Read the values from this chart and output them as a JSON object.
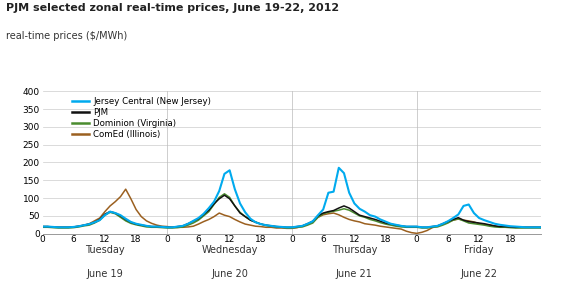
{
  "title": "PJM selected zonal real-time prices, June 19-22, 2012",
  "ylabel": "real-time prices ($/MWh)",
  "ylim": [
    0,
    400
  ],
  "yticks": [
    0,
    50,
    100,
    150,
    200,
    250,
    300,
    350,
    400
  ],
  "background_color": "#ffffff",
  "colors": {
    "jersey": "#00AAEE",
    "pjm": "#111111",
    "dominion": "#4a8c2f",
    "comed": "#9B6020"
  },
  "legend": [
    {
      "label": "Jersey Central (New Jersey)",
      "color": "#00AAEE"
    },
    {
      "label": "PJM",
      "color": "#111111"
    },
    {
      "label": "Dominion (Virginia)",
      "color": "#4a8c2f"
    },
    {
      "label": "ComEd (Illinois)",
      "color": "#9B6020"
    }
  ],
  "hour_tick_positions": [
    0,
    6,
    12,
    18,
    24,
    30,
    36,
    42,
    48,
    54,
    60,
    66,
    72,
    78,
    84,
    90,
    96
  ],
  "hour_tick_labels": [
    "0",
    "6",
    "12",
    "18",
    "0",
    "6",
    "12",
    "18",
    "0",
    "6",
    "12",
    "18",
    "0",
    "6",
    "12",
    "18",
    ""
  ],
  "day_labels": [
    {
      "day": "Tuesday",
      "date": "June 19",
      "x": 12
    },
    {
      "day": "Wednesday",
      "date": "June 20",
      "x": 36
    },
    {
      "day": "Thursday",
      "date": "June 21",
      "x": 60
    },
    {
      "day": "Friday",
      "date": "June 22",
      "x": 84
    }
  ],
  "jersey_data": [
    20,
    20,
    19,
    18,
    18,
    18,
    19,
    21,
    24,
    27,
    32,
    38,
    52,
    62,
    58,
    52,
    42,
    33,
    28,
    25,
    22,
    20,
    20,
    19,
    18,
    18,
    20,
    22,
    28,
    36,
    44,
    56,
    72,
    90,
    120,
    168,
    178,
    125,
    85,
    60,
    42,
    32,
    27,
    24,
    22,
    20,
    19,
    18,
    18,
    20,
    22,
    28,
    35,
    52,
    68,
    115,
    118,
    185,
    170,
    115,
    85,
    70,
    62,
    52,
    48,
    40,
    34,
    28,
    25,
    22,
    20,
    20,
    20,
    18,
    18,
    20,
    22,
    28,
    35,
    44,
    54,
    78,
    82,
    58,
    44,
    38,
    33,
    28,
    25,
    23,
    21,
    20,
    19,
    18,
    18,
    18,
    18
  ],
  "pjm_data": [
    20,
    20,
    19,
    18,
    18,
    18,
    19,
    21,
    24,
    27,
    32,
    40,
    55,
    62,
    58,
    50,
    40,
    32,
    27,
    24,
    22,
    20,
    20,
    19,
    18,
    18,
    20,
    22,
    28,
    35,
    42,
    54,
    66,
    84,
    98,
    108,
    98,
    78,
    58,
    48,
    38,
    32,
    27,
    24,
    22,
    20,
    19,
    18,
    18,
    20,
    22,
    28,
    35,
    50,
    58,
    62,
    65,
    72,
    78,
    72,
    62,
    52,
    48,
    44,
    40,
    35,
    30,
    27,
    24,
    22,
    20,
    20,
    20,
    18,
    18,
    20,
    22,
    28,
    34,
    40,
    45,
    38,
    34,
    32,
    30,
    28,
    25,
    22,
    20,
    20,
    19,
    18,
    18,
    18,
    18,
    18,
    18
  ],
  "dominion_data": [
    18,
    18,
    17,
    16,
    16,
    16,
    17,
    19,
    22,
    24,
    30,
    38,
    52,
    60,
    56,
    46,
    36,
    29,
    25,
    22,
    19,
    18,
    18,
    17,
    16,
    16,
    17,
    19,
    24,
    30,
    38,
    50,
    62,
    82,
    102,
    112,
    102,
    78,
    60,
    48,
    38,
    33,
    27,
    23,
    21,
    19,
    18,
    16,
    16,
    18,
    19,
    24,
    30,
    46,
    56,
    60,
    63,
    66,
    70,
    66,
    58,
    50,
    46,
    40,
    36,
    31,
    27,
    24,
    21,
    19,
    18,
    18,
    18,
    16,
    16,
    18,
    19,
    24,
    30,
    38,
    42,
    36,
    30,
    28,
    26,
    24,
    21,
    19,
    18,
    18,
    17,
    16,
    16,
    16,
    16,
    16,
    16
  ],
  "comed_data": [
    20,
    20,
    18,
    18,
    18,
    18,
    19,
    21,
    24,
    28,
    36,
    44,
    62,
    78,
    90,
    104,
    125,
    98,
    68,
    48,
    36,
    29,
    24,
    21,
    20,
    18,
    18,
    18,
    19,
    21,
    27,
    34,
    40,
    48,
    58,
    52,
    48,
    40,
    33,
    27,
    24,
    21,
    20,
    18,
    18,
    16,
    16,
    15,
    15,
    17,
    21,
    27,
    33,
    46,
    53,
    56,
    58,
    53,
    46,
    40,
    36,
    33,
    28,
    26,
    24,
    21,
    19,
    17,
    15,
    13,
    7,
    3,
    1,
    4,
    9,
    17,
    21,
    27,
    33,
    38,
    41,
    38,
    36,
    33,
    28,
    26,
    24,
    21,
    19,
    19,
    18,
    18,
    18,
    18,
    18,
    18,
    18
  ]
}
